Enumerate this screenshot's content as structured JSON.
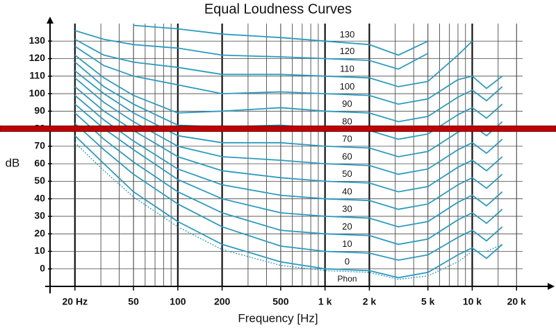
{
  "chart_data": {
    "type": "line",
    "title": "Equal Loudness Curves",
    "x_label": "Frequency [Hz]",
    "y_label": "dB",
    "log_x": true,
    "xlim": [
      14,
      22000
    ],
    "ylim": [
      -10,
      140
    ],
    "xticks": [
      {
        "value": 20,
        "label": "20 Hz"
      },
      50,
      100,
      200,
      500,
      {
        "value": 1000,
        "label": "1 k"
      },
      {
        "value": 2000,
        "label": "2 k"
      },
      {
        "value": 5000,
        "label": "5 k"
      },
      {
        "value": 10000,
        "label": "10 k"
      },
      {
        "value": 20000,
        "label": "20 k"
      }
    ],
    "x_major_grid": [
      20,
      100,
      200,
      1000,
      2000,
      10000
    ],
    "x_minor_grid": [
      30,
      40,
      60,
      70,
      80,
      90,
      300,
      400,
      600,
      700,
      800,
      900,
      3000,
      4000,
      6000,
      7000,
      8000,
      9000,
      15000
    ],
    "yticks": [
      0,
      10,
      20,
      30,
      40,
      50,
      60,
      70,
      80,
      90,
      100,
      110,
      120,
      130
    ],
    "grid": true,
    "color": "#2a9bc0",
    "label_unit": "Phon",
    "reference_line": {
      "value": 80,
      "color": "#c00000"
    },
    "x": [
      20,
      31.5,
      50,
      100,
      200,
      500,
      1000,
      2000,
      3150,
      5000,
      8000,
      10000,
      12500,
      16000
    ],
    "threshold": {
      "color": "#2a9bc0",
      "values": [
        72,
        56,
        41,
        24,
        11,
        2,
        -1,
        -2,
        -6,
        -4,
        4,
        10,
        10,
        14
      ]
    },
    "series": [
      {
        "name": "0",
        "values": [
          76,
          60,
          44,
          27,
          14,
          4,
          0,
          -1,
          -5,
          -2,
          8,
          12,
          6,
          14
        ]
      },
      {
        "name": "10",
        "values": [
          83,
          68,
          54,
          37,
          24,
          13,
          10,
          9,
          5,
          8,
          18,
          22,
          16,
          24
        ]
      },
      {
        "name": "20",
        "values": [
          89,
          74,
          61,
          44,
          32,
          22,
          20,
          19,
          14,
          17,
          28,
          32,
          26,
          34
        ]
      },
      {
        "name": "30",
        "values": [
          94,
          80,
          68,
          51,
          40,
          32,
          30,
          29,
          24,
          27,
          38,
          42,
          36,
          44
        ]
      },
      {
        "name": "40",
        "values": [
          99,
          85,
          73,
          57,
          48,
          42,
          40,
          39,
          34,
          37,
          48,
          52,
          46,
          54
        ]
      },
      {
        "name": "50",
        "values": [
          104,
          90,
          79,
          64,
          56,
          52,
          50,
          49,
          44,
          47,
          58,
          62,
          56,
          64
        ]
      },
      {
        "name": "60",
        "values": [
          109,
          95,
          84,
          70,
          64,
          62,
          60,
          59,
          54,
          57,
          68,
          72,
          66,
          74
        ]
      },
      {
        "name": "70",
        "values": [
          113,
          100,
          89,
          76,
          72,
          72,
          70,
          69,
          64,
          67,
          78,
          82,
          76,
          84
        ]
      },
      {
        "name": "80",
        "values": [
          118,
          104,
          94,
          82,
          81,
          82,
          80,
          79,
          74,
          77,
          88,
          92,
          86,
          94
        ]
      },
      {
        "name": "90",
        "values": [
          122,
          109,
          99,
          89,
          90,
          92,
          90,
          89,
          84,
          87,
          98,
          102,
          96,
          104
        ]
      },
      {
        "name": "100",
        "values": [
          127,
          116,
          110,
          105,
          100,
          101,
          100,
          99,
          94,
          97,
          108,
          110,
          103,
          110
        ]
      },
      {
        "name": "110",
        "values": [
          131,
          122,
          118,
          115,
          111,
          111,
          110,
          109,
          104,
          107,
          122,
          130,
          null,
          null
        ]
      },
      {
        "name": "120",
        "values": [
          136,
          131,
          128,
          126,
          122,
          121,
          120,
          119,
          114,
          123,
          null,
          null,
          null,
          null
        ]
      },
      {
        "name": "130",
        "values": [
          null,
          null,
          139,
          137,
          134,
          132,
          130,
          128,
          122,
          130,
          null,
          null,
          null,
          null
        ]
      }
    ]
  }
}
